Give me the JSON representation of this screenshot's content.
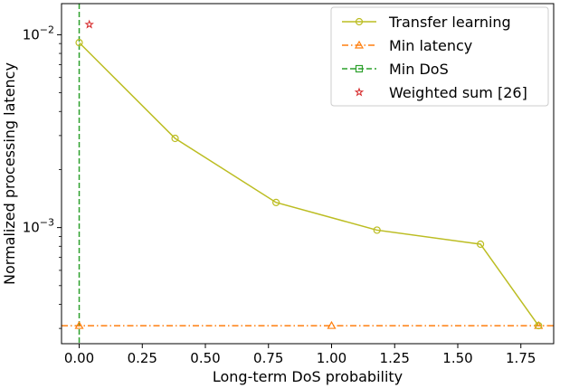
{
  "chart_data": {
    "type": "line",
    "xlabel": "Long-term DoS probability",
    "ylabel": "Normalized processing latency",
    "xlim": [
      -0.07,
      1.88
    ],
    "ylim": [
      0.00025,
      0.0145
    ],
    "yscale": "log",
    "grid": false,
    "legend_placement": "top-right",
    "x_ticks": [
      "0.00",
      "0.25",
      "0.50",
      "0.75",
      "1.00",
      "1.25",
      "1.50",
      "1.75"
    ],
    "x_tick_values": [
      0,
      0.25,
      0.5,
      0.75,
      1.0,
      1.25,
      1.5,
      1.75
    ],
    "y_ticks": [
      {
        "base": "10",
        "exp": "−2",
        "value": 0.01
      },
      {
        "base": "10",
        "exp": "−3",
        "value": 0.001
      }
    ],
    "series": [
      {
        "name": "Transfer learning",
        "color": "#bcbd22",
        "line": "solid",
        "marker": "circle",
        "x": [
          0.0,
          0.38,
          0.78,
          1.18,
          1.59,
          1.82
        ],
        "y": [
          0.0091,
          0.0029,
          0.00135,
          0.00097,
          0.00082,
          0.00031
        ]
      },
      {
        "name": "Min latency",
        "color": "#ff7f0e",
        "line": "dashdot",
        "marker": "triangle",
        "y_const": 0.00031,
        "marker_x": [
          0.0,
          1.0,
          1.82
        ]
      },
      {
        "name": "Min DoS",
        "color": "#2ca02c",
        "line": "dashed",
        "marker": "square",
        "x_const": 0.0
      },
      {
        "name": "Weighted sum [26]",
        "color": "#d62728",
        "line": "none",
        "marker": "star",
        "x": [
          0.04
        ],
        "y": [
          0.0113
        ]
      }
    ]
  }
}
